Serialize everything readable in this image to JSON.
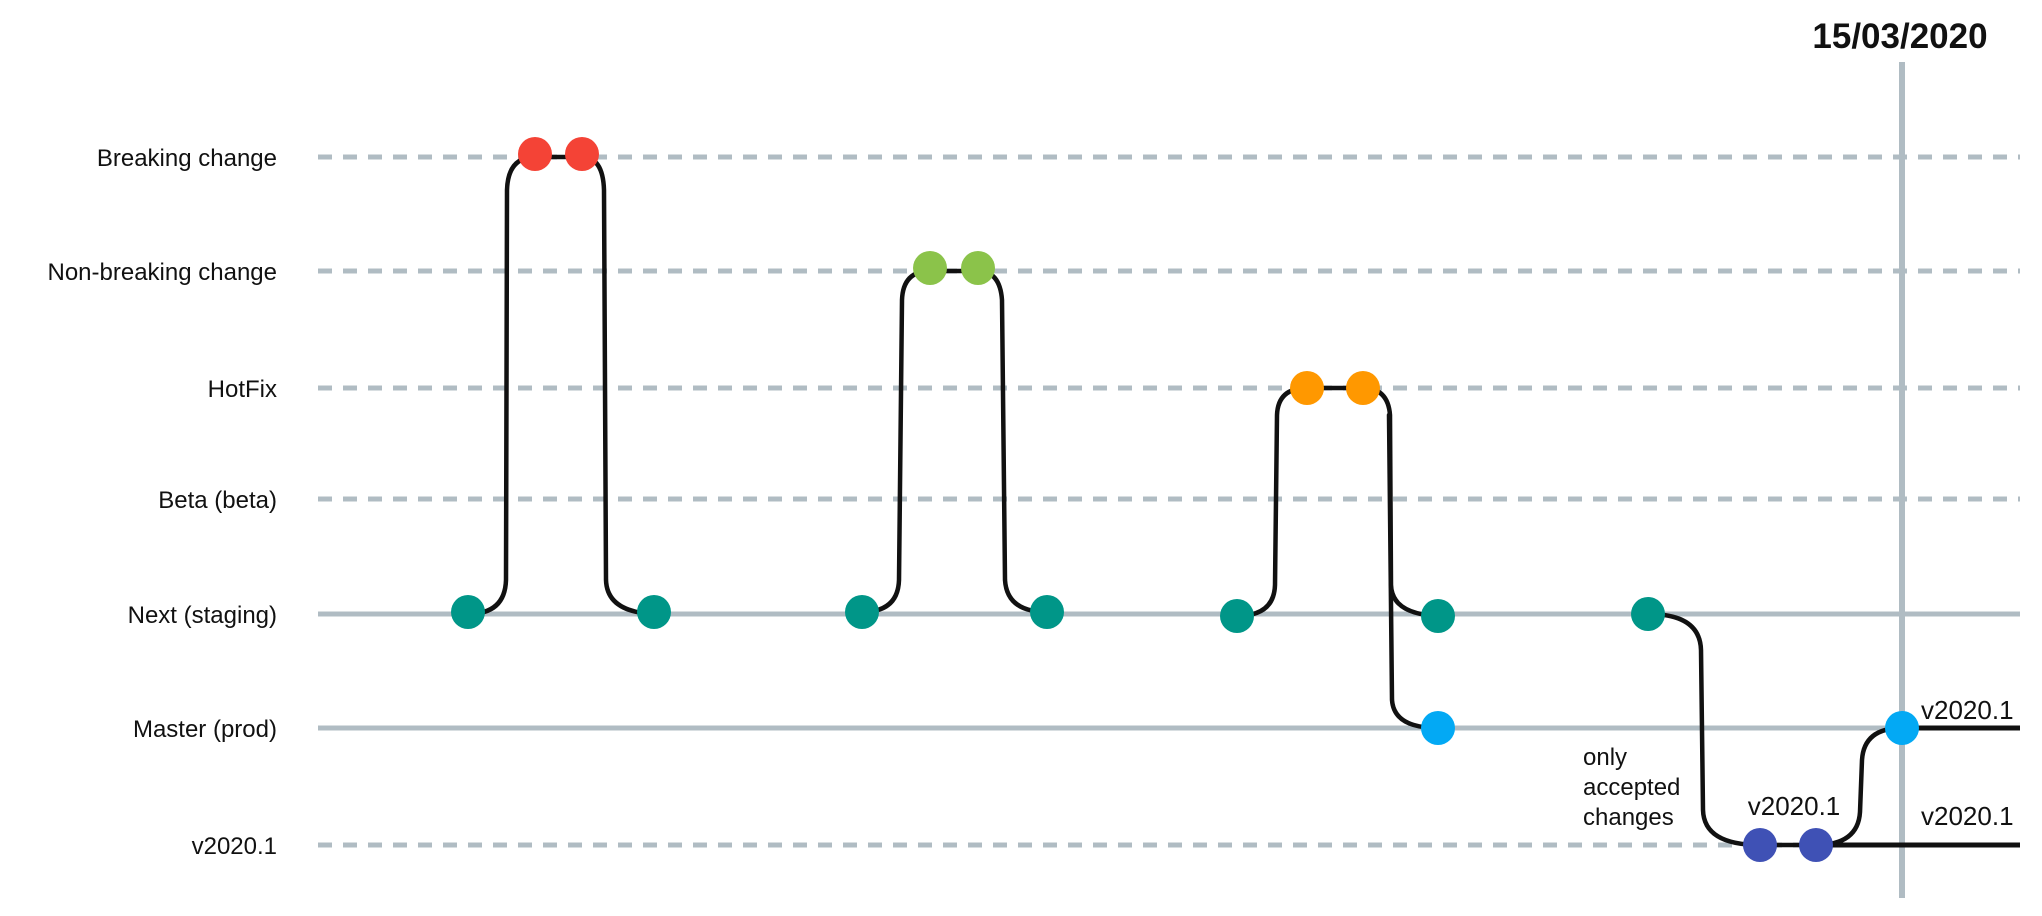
{
  "lanes": [
    {
      "id": "breaking",
      "label": "Breaking change",
      "style": "dashed"
    },
    {
      "id": "nonbreaking",
      "label": "Non-breaking change",
      "style": "dashed"
    },
    {
      "id": "hotfix",
      "label": "HotFix",
      "style": "dashed"
    },
    {
      "id": "beta",
      "label": "Beta (beta)",
      "style": "dashed"
    },
    {
      "id": "next",
      "label": "Next (staging)",
      "style": "solid"
    },
    {
      "id": "master",
      "label": "Master (prod)",
      "style": "solid"
    },
    {
      "id": "release",
      "label": "v2020.1",
      "style": "dashed"
    }
  ],
  "marker": {
    "date": "15/03/2020"
  },
  "annotations": {
    "note_lines": [
      "only",
      "accepted",
      "changes"
    ],
    "release_tag": "v2020.1",
    "master_tag": "v2020.1",
    "release_end_tag": "v2020.1"
  },
  "colors": {
    "breaking": "#f44336",
    "nonbreaking": "#8bc34a",
    "hotfix": "#ff9800",
    "next": "#009688",
    "master": "#03a9f4",
    "release": "#3f51b5",
    "lane": "#b0bcc3",
    "flow": "#111111"
  }
}
